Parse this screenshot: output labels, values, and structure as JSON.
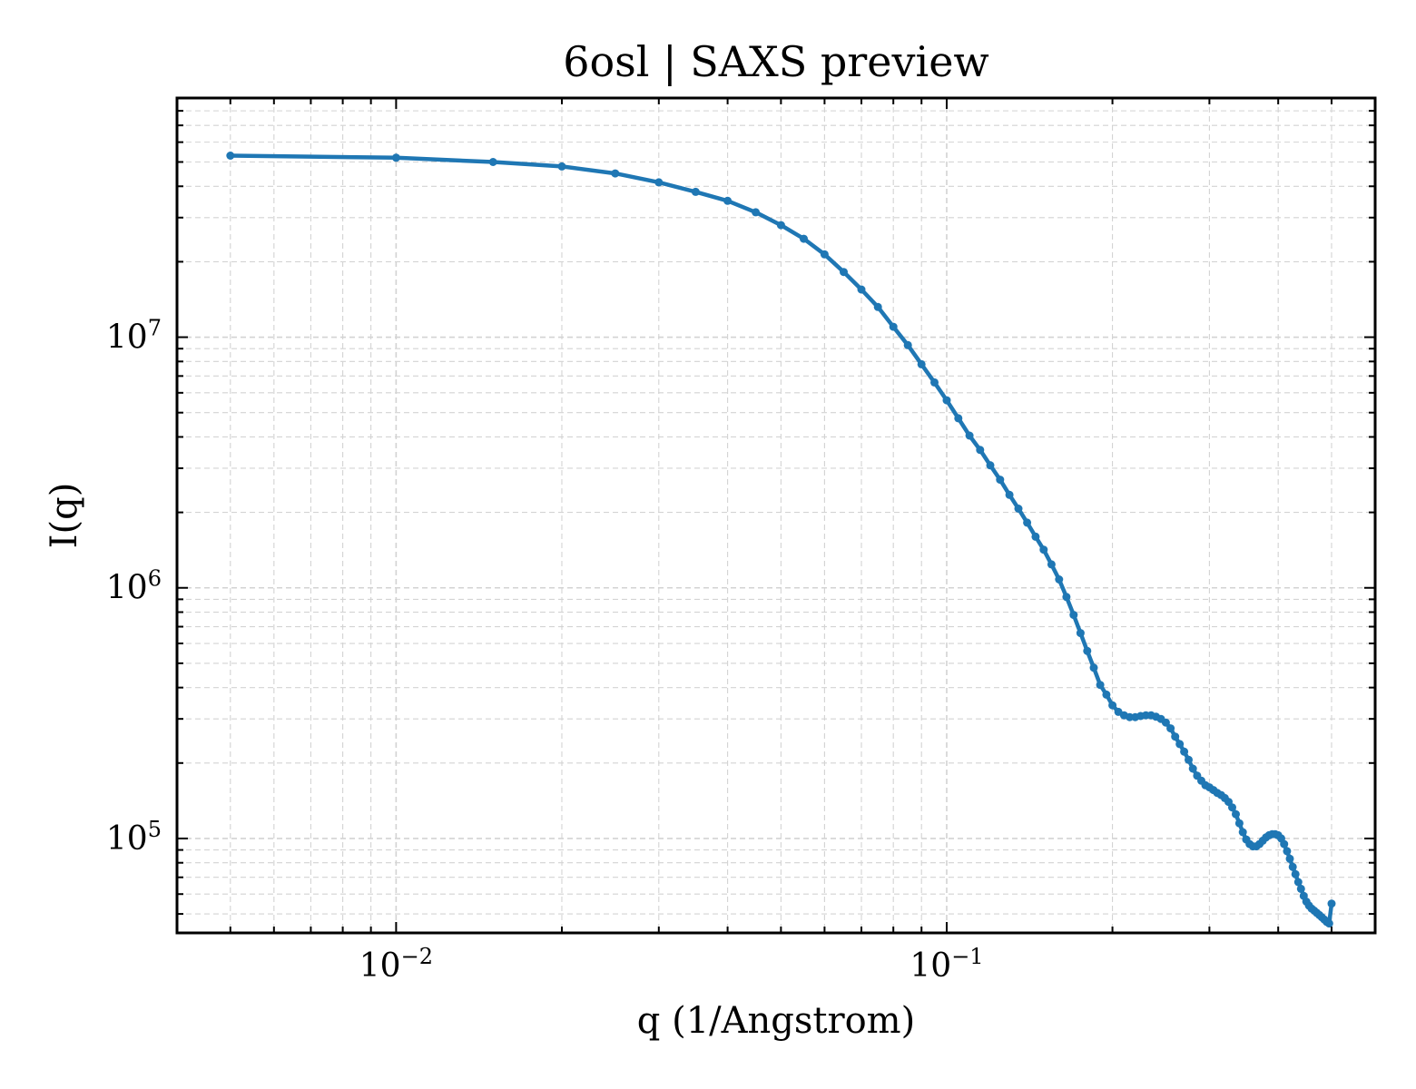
{
  "chart_data": {
    "type": "line",
    "title": "6osl | SAXS preview",
    "xlabel": "q (1/Angstrom)",
    "ylabel": "I(q)",
    "xscale": "log",
    "yscale": "log",
    "xlim": [
      0.004,
      0.6
    ],
    "ylim": [
      42000,
      90000000
    ],
    "grid": true,
    "legend": "none",
    "x_ticks": [
      {
        "value": 0.01,
        "base": "10",
        "exp": "−2"
      },
      {
        "value": 0.1,
        "base": "10",
        "exp": "−1"
      }
    ],
    "y_ticks": [
      {
        "value": 100000,
        "base": "10",
        "exp": "5"
      },
      {
        "value": 1000000,
        "base": "10",
        "exp": "6"
      },
      {
        "value": 10000000,
        "base": "10",
        "exp": "7"
      }
    ],
    "colors": {
      "series": "#1f77b4",
      "grid": "#d3d3d3",
      "axes": "#000000"
    },
    "series": [
      {
        "color": "#1f77b4",
        "x": [
          0.005,
          0.01,
          0.015,
          0.02,
          0.025,
          0.03,
          0.035,
          0.04,
          0.045,
          0.05,
          0.055,
          0.06,
          0.065,
          0.07,
          0.075,
          0.08,
          0.085,
          0.09,
          0.095,
          0.1,
          0.105,
          0.11,
          0.115,
          0.12,
          0.125,
          0.13,
          0.135,
          0.14,
          0.145,
          0.15,
          0.155,
          0.16,
          0.165,
          0.17,
          0.175,
          0.18,
          0.185,
          0.19,
          0.195,
          0.2,
          0.205,
          0.21,
          0.215,
          0.22,
          0.225,
          0.23,
          0.235,
          0.24,
          0.245,
          0.25,
          0.255,
          0.26,
          0.265,
          0.27,
          0.275,
          0.28,
          0.285,
          0.29,
          0.295,
          0.3,
          0.305,
          0.31,
          0.315,
          0.32,
          0.325,
          0.33,
          0.335,
          0.34,
          0.345,
          0.35,
          0.355,
          0.36,
          0.365,
          0.37,
          0.375,
          0.38,
          0.385,
          0.39,
          0.395,
          0.4,
          0.405,
          0.41,
          0.415,
          0.42,
          0.425,
          0.43,
          0.435,
          0.44,
          0.445,
          0.45,
          0.455,
          0.46,
          0.465,
          0.47,
          0.475,
          0.48,
          0.485,
          0.49,
          0.495,
          0.5
        ],
        "y": [
          53000000,
          52000000,
          50000000,
          48000000,
          45000000,
          41500000,
          38000000,
          35000000,
          31500000,
          28000000,
          24700000,
          21400000,
          18200000,
          15500000,
          13200000,
          11000000,
          9300000,
          7800000,
          6600000,
          5600000,
          4750000,
          4050000,
          3550000,
          3080000,
          2700000,
          2350000,
          2070000,
          1820000,
          1600000,
          1420000,
          1240000,
          1080000,
          920000,
          780000,
          660000,
          560000,
          480000,
          410000,
          375000,
          340000,
          320000,
          310000,
          305000,
          305000,
          308000,
          310000,
          310000,
          306000,
          300000,
          290000,
          275000,
          255000,
          238000,
          222000,
          206000,
          190000,
          178000,
          170000,
          163000,
          160000,
          156000,
          152000,
          149000,
          145000,
          140000,
          133000,
          125000,
          115000,
          106000,
          99000,
          95000,
          93000,
          93000,
          95000,
          98000,
          101000,
          103000,
          104000,
          104000,
          103000,
          100000,
          95000,
          89000,
          83000,
          77000,
          72000,
          67000,
          63000,
          59000,
          56000,
          54000,
          52500,
          51500,
          50500,
          49500,
          48500,
          47500,
          46500,
          45800,
          55000
        ]
      }
    ]
  }
}
